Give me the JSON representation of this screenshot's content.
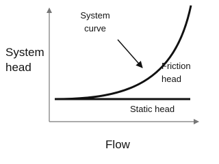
{
  "axis_labels": {
    "y": [
      "System",
      "head"
    ],
    "x": "Flow"
  },
  "annotations": {
    "system_curve": [
      "System",
      "curve"
    ],
    "friction_head": [
      "Friction",
      "head"
    ],
    "static_head": "Static head"
  }
}
